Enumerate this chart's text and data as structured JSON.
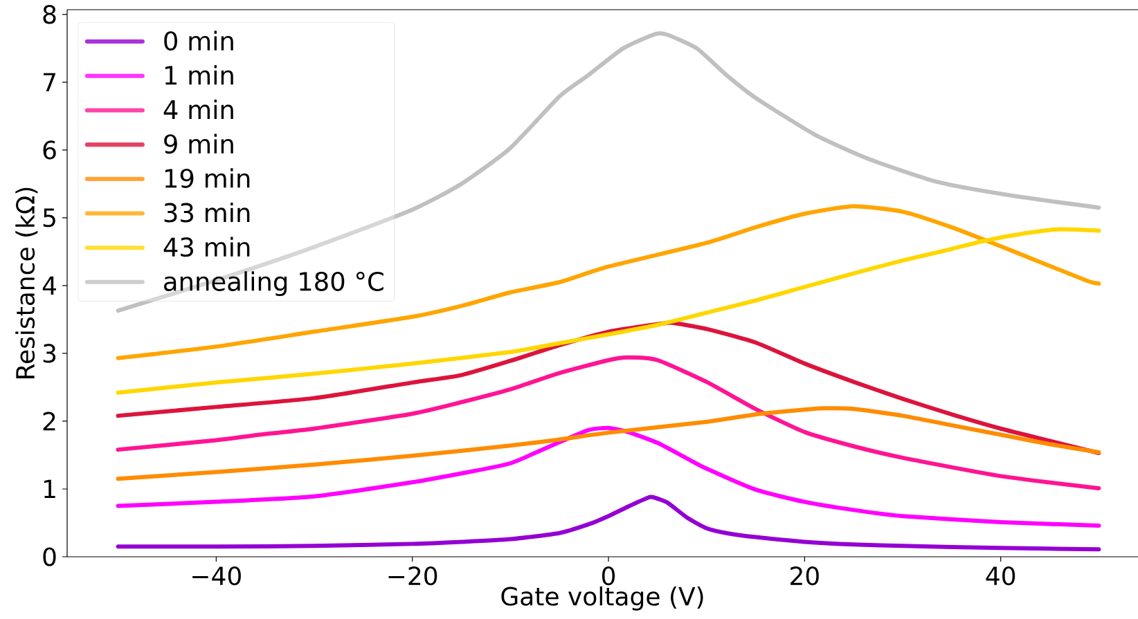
{
  "chart_data": {
    "type": "line",
    "xlabel": "Gate voltage (V)",
    "ylabel": "Resistance (kΩ)",
    "xlim": [
      -55.2,
      54
    ],
    "ylim": [
      0,
      8.07
    ],
    "xticks": [
      {
        "value": -40,
        "label": "−40"
      },
      {
        "value": -20,
        "label": "−20"
      },
      0,
      20,
      40
    ],
    "yticks": [
      0,
      1,
      2,
      3,
      4,
      5,
      6,
      7,
      8
    ],
    "legend": "top left",
    "line_style": "solid",
    "series": [
      {
        "name": "0 min",
        "color": "#9400d3",
        "x": [
          -50,
          -40,
          -30,
          -20,
          -15,
          -10,
          -5,
          -2,
          0,
          2,
          4,
          4.5,
          6,
          8,
          10,
          12,
          15,
          20,
          25,
          30,
          40,
          50
        ],
        "values": [
          0.15,
          0.15,
          0.16,
          0.19,
          0.22,
          0.26,
          0.35,
          0.48,
          0.6,
          0.74,
          0.87,
          0.88,
          0.8,
          0.58,
          0.42,
          0.35,
          0.29,
          0.22,
          0.18,
          0.16,
          0.13,
          0.11
        ]
      },
      {
        "name": "1 min",
        "color": "#ff00ff",
        "x": [
          -50,
          -40,
          -30,
          -20,
          -15,
          -10,
          -5,
          -2,
          0,
          2,
          5,
          8,
          10,
          15,
          20,
          25,
          30,
          40,
          50
        ],
        "values": [
          0.75,
          0.81,
          0.89,
          1.1,
          1.23,
          1.38,
          1.69,
          1.87,
          1.9,
          1.84,
          1.68,
          1.45,
          1.3,
          0.99,
          0.81,
          0.69,
          0.6,
          0.51,
          0.46
        ]
      },
      {
        "name": "4 min",
        "color": "#ff1493",
        "x": [
          -50,
          -40,
          -35,
          -30,
          -20,
          -15,
          -10,
          -5,
          0,
          2,
          5,
          10,
          15,
          20,
          25,
          30,
          40,
          50
        ],
        "values": [
          1.58,
          1.72,
          1.81,
          1.89,
          2.11,
          2.28,
          2.47,
          2.71,
          2.9,
          2.94,
          2.9,
          2.58,
          2.18,
          1.84,
          1.63,
          1.46,
          1.19,
          1.01
        ]
      },
      {
        "name": "9 min",
        "color": "#dc143c",
        "x": [
          -50,
          -40,
          -30,
          -20,
          -15,
          -10,
          -5,
          0,
          5,
          6.5,
          10,
          15,
          20,
          25,
          30,
          35,
          40,
          45,
          50
        ],
        "values": [
          2.08,
          2.21,
          2.34,
          2.57,
          2.68,
          2.89,
          3.12,
          3.32,
          3.43,
          3.45,
          3.36,
          3.16,
          2.85,
          2.58,
          2.33,
          2.1,
          1.89,
          1.71,
          1.53
        ]
      },
      {
        "name": "19 min",
        "color": "#ff8c00",
        "x": [
          -50,
          -40,
          -30,
          -20,
          -10,
          -5,
          0,
          10,
          15,
          20,
          22,
          25,
          30,
          35,
          40,
          45,
          50
        ],
        "values": [
          1.15,
          1.25,
          1.36,
          1.49,
          1.64,
          1.73,
          1.83,
          1.99,
          2.1,
          2.17,
          2.19,
          2.18,
          2.08,
          1.94,
          1.8,
          1.66,
          1.54
        ]
      },
      {
        "name": "33 min",
        "color": "#ffa500",
        "x": [
          -50,
          -40,
          -30,
          -20,
          -15,
          -10,
          -5,
          0,
          10,
          15,
          20,
          25,
          30,
          35,
          40,
          45,
          49,
          50
        ],
        "values": [
          2.93,
          3.1,
          3.32,
          3.54,
          3.7,
          3.9,
          4.05,
          4.28,
          4.63,
          4.86,
          5.06,
          5.17,
          5.09,
          4.86,
          4.58,
          4.29,
          4.06,
          4.03
        ]
      },
      {
        "name": "43 min",
        "color": "#ffd700",
        "x": [
          -50,
          -40,
          -30,
          -20,
          -10,
          -5,
          0,
          5,
          10,
          15,
          20,
          25,
          30,
          35,
          38,
          42,
          46,
          50
        ],
        "values": [
          2.42,
          2.57,
          2.7,
          2.85,
          3.02,
          3.15,
          3.28,
          3.42,
          3.6,
          3.78,
          3.98,
          4.18,
          4.37,
          4.54,
          4.65,
          4.76,
          4.83,
          4.81
        ]
      },
      {
        "name": "annealing 180 °C",
        "color": "#c0c0c0",
        "x": [
          -50,
          -40,
          -30,
          -20,
          -15,
          -10,
          -5,
          -2,
          1.5,
          4.75,
          6,
          9,
          12,
          15,
          21,
          26.5,
          33.5,
          41,
          50
        ],
        "values": [
          3.63,
          4.08,
          4.57,
          5.12,
          5.5,
          6.03,
          6.79,
          7.11,
          7.5,
          7.71,
          7.7,
          7.5,
          7.11,
          6.77,
          6.23,
          5.87,
          5.53,
          5.33,
          5.15
        ]
      }
    ]
  }
}
